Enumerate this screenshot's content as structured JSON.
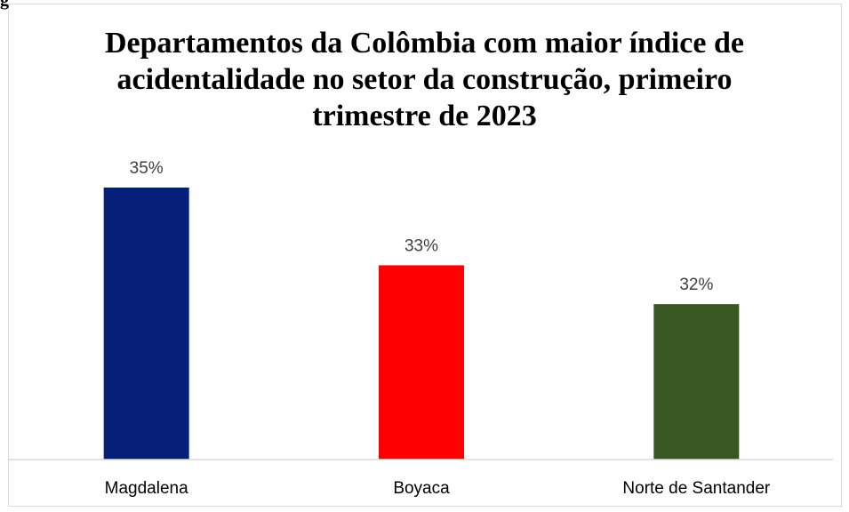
{
  "figure_label": "g",
  "chart_data": {
    "type": "bar",
    "title": "Departamentos da Colômbia com maior índice de acidentalidade no setor da construção, primeiro trimestre de 2023",
    "title_lines": [
      "Departamentos da Colômbia com maior índice de",
      "acidentalidade no setor da construção, primeiro",
      "trimestre de 2023"
    ],
    "categories": [
      "Magdalena",
      "Boyaca",
      "Norte de Santander"
    ],
    "values": [
      35,
      33,
      32
    ],
    "data_labels": [
      "35%",
      "33%",
      "32%"
    ],
    "unit": "%",
    "colors": [
      "#06207a",
      "#ff0000",
      "#385723"
    ],
    "xlabel": "",
    "ylabel": "",
    "ylim": [
      28,
      36
    ],
    "grid": false,
    "legend": "none"
  }
}
